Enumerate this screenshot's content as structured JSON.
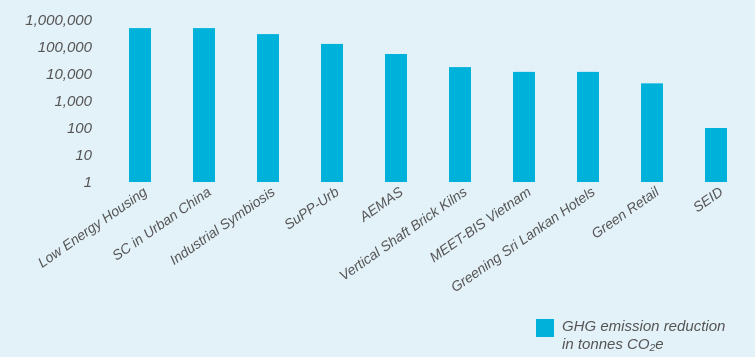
{
  "colors": {
    "background": "#e3f1f8",
    "bar": "#00b1da",
    "text": "#555555"
  },
  "chart_data": {
    "type": "bar",
    "title": "",
    "xlabel": "",
    "ylabel": "",
    "yscale": "log",
    "ylim": [
      1,
      1000000
    ],
    "ytick_values": [
      1,
      10,
      100,
      1000,
      10000,
      100000,
      1000000
    ],
    "ytick_labels": [
      "1",
      "10",
      "100",
      "1,000",
      "10,000",
      "100,000",
      "1,000,000"
    ],
    "categories": [
      "Low Energy Housing",
      "SC in Urban China",
      "Industrial Symbiosis",
      "SuPP-Urb",
      "AEMAS",
      "Vertical Shaft Brick Kilns",
      "MEET-BIS Vietnam",
      "Greening Sri Lankan Hotels",
      "Green Retail",
      "SEID"
    ],
    "series": [
      {
        "name": "GHG emission reduction in tonnes CO₂e",
        "values": [
          500000,
          500000,
          300000,
          130000,
          55000,
          18000,
          12000,
          12000,
          4500,
          100
        ]
      }
    ],
    "grid": false,
    "legend_position": "bottom-right"
  },
  "legend": {
    "line1": "GHG emission reduction",
    "line2": "in tonnes CO₂e"
  }
}
